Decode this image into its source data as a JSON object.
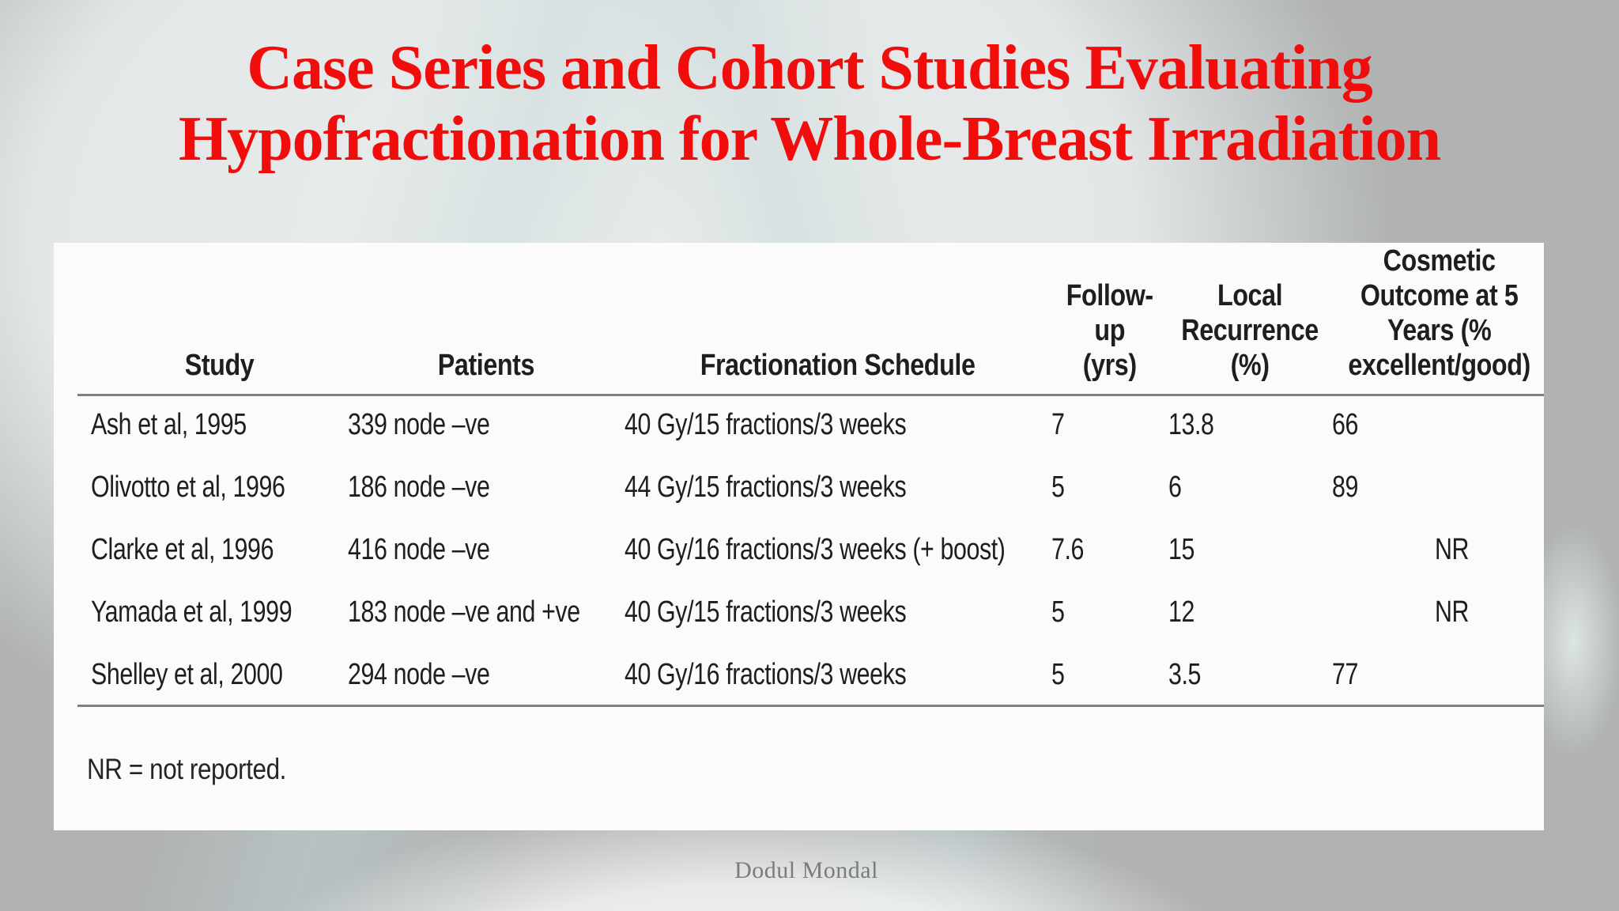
{
  "title": {
    "line1": "Case Series and Cohort Studies Evaluating",
    "line2": "Hypofractionation for Whole-Breast Irradiation"
  },
  "table": {
    "headers": [
      "Study",
      "Patients",
      "Fractionation Schedule",
      "Follow-\nup\n(yrs)",
      "Local\nRecurrence\n(%)",
      "Cosmetic\nOutcome at 5\nYears (%\nexcellent/good)"
    ],
    "rows": [
      {
        "study": "Ash et al, 1995",
        "patients": "339 node –ve",
        "schedule": "40 Gy/15 fractions/3 weeks",
        "followup": "7",
        "recurrence": "13.8",
        "cosmetic": "66"
      },
      {
        "study": "Olivotto et al, 1996",
        "patients": "186 node –ve",
        "schedule": "44 Gy/15 fractions/3 weeks",
        "followup": "5",
        "recurrence": "6",
        "cosmetic": "89"
      },
      {
        "study": "Clarke et al, 1996",
        "patients": "416 node –ve",
        "schedule": "40 Gy/16 fractions/3 weeks (+ boost)",
        "followup": "7.6",
        "recurrence": "15",
        "cosmetic": "NR"
      },
      {
        "study": "Yamada et al, 1999",
        "patients": "183 node –ve and +ve",
        "schedule": "40 Gy/15 fractions/3 weeks",
        "followup": "5",
        "recurrence": "12",
        "cosmetic": "NR"
      },
      {
        "study": "Shelley et al, 2000",
        "patients": "294 node –ve",
        "schedule": "40 Gy/16 fractions/3 weeks",
        "followup": "5",
        "recurrence": "3.5",
        "cosmetic": "77"
      }
    ],
    "footnote": "NR = not reported."
  },
  "footer": "Dodul Mondal",
  "colors": {
    "title_red": "#f20d0d",
    "rule_gray": "#7f7f7f",
    "panel_white": "#fbfbfc",
    "backdrop_gray": "#b1b3b3",
    "footer_gray": "#7b7b7e"
  }
}
